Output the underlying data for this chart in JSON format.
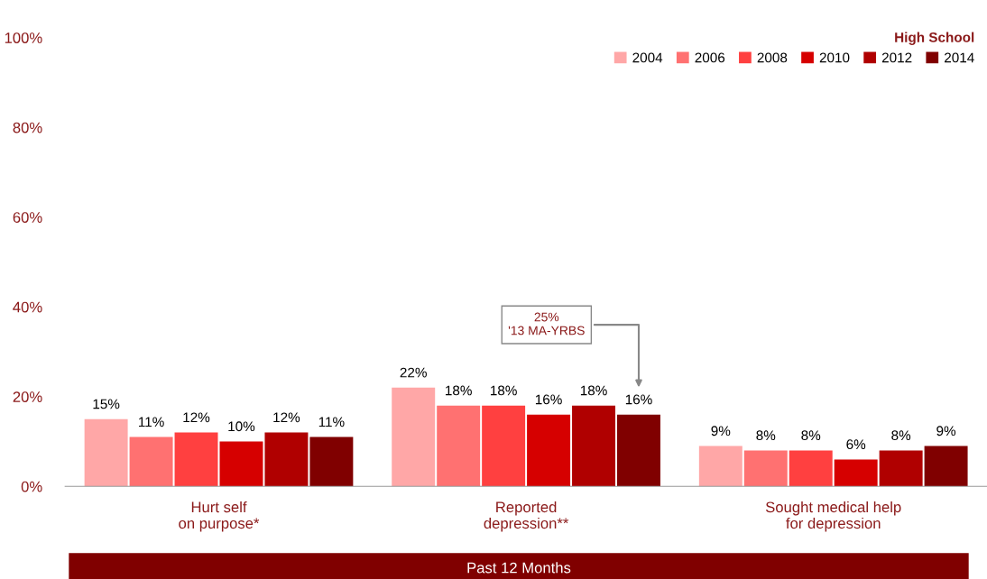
{
  "chart_data": {
    "type": "bar",
    "legend_title": "High School",
    "categories": [
      "Hurt self\non purpose*",
      "Reported\ndepression**",
      "Sought medical help\nfor depression"
    ],
    "series": [
      {
        "name": "2004",
        "color": "#ffa7a7",
        "values": [
          15,
          22,
          9
        ]
      },
      {
        "name": "2006",
        "color": "#ff7171",
        "values": [
          11,
          18,
          8
        ]
      },
      {
        "name": "2008",
        "color": "#ff4040",
        "values": [
          12,
          18,
          8
        ]
      },
      {
        "name": "2010",
        "color": "#d60000",
        "values": [
          10,
          16,
          6
        ]
      },
      {
        "name": "2012",
        "color": "#b00000",
        "values": [
          12,
          18,
          8
        ]
      },
      {
        "name": "2014",
        "color": "#800000",
        "values": [
          11,
          16,
          9
        ]
      }
    ],
    "ylim": [
      0,
      100
    ],
    "yticks": [
      {
        "value": 0,
        "label": "0%"
      },
      {
        "value": 20,
        "label": "20%"
      },
      {
        "value": 40,
        "label": "40%"
      },
      {
        "value": 60,
        "label": "60%"
      },
      {
        "value": 80,
        "label": "80%"
      },
      {
        "value": 100,
        "label": "100%"
      }
    ],
    "value_labels": [
      [
        "15%",
        "22%",
        "9%"
      ],
      [
        "11%",
        "18%",
        "8%"
      ],
      [
        "12%",
        "18%",
        "8%"
      ],
      [
        "10%",
        "16%",
        "6%"
      ],
      [
        "12%",
        "18%",
        "8%"
      ],
      [
        "11%",
        "16%",
        "9%"
      ]
    ],
    "annotations": [
      "25%\n'13 MA-YRBS",
      "Past 12 Months"
    ],
    "legend": "top right",
    "grid": false
  }
}
